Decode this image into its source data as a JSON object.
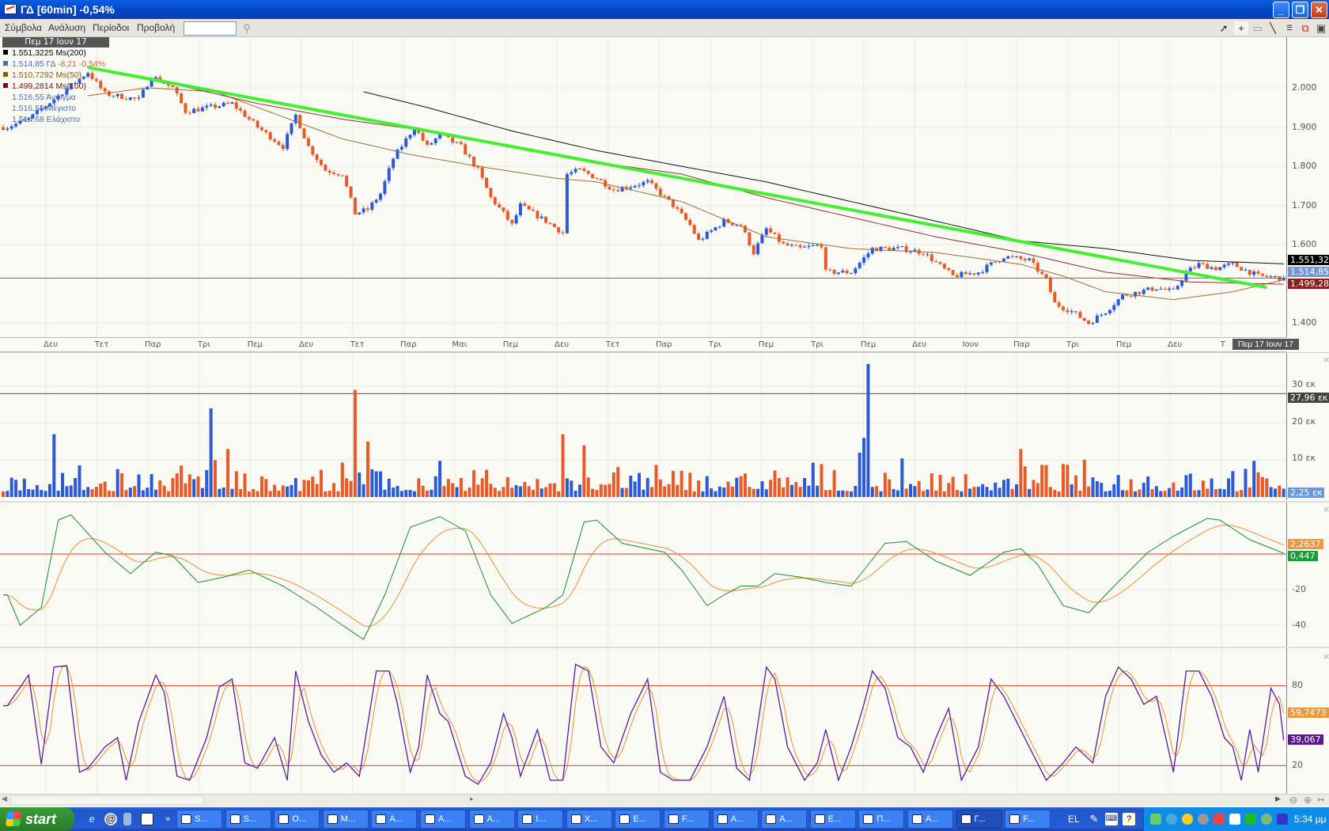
{
  "window": {
    "title": "ΓΔ [60min] -0,54%"
  },
  "menu": {
    "items": [
      "Σύμβολα",
      "Ανάλυση",
      "Περίοδοι",
      "Προβολή"
    ],
    "symbol_input": ""
  },
  "toolbar_icons": [
    "pointer-icon",
    "crosshair-icon",
    "rectangle-icon",
    "line-tool-icon",
    "horizontal-lines-icon",
    "chart-icon",
    "save-icon"
  ],
  "main": {
    "date_label": "Πεμ 17 Ιουν 17",
    "legend": [
      {
        "text": "1.551,3225 Ms(200)",
        "color": "#000000",
        "square": true
      },
      {
        "text": "1.514,85 ΓΔ ",
        "extra": "-8,21 -0,54%",
        "color": "#4a6fa8",
        "square": true
      },
      {
        "text": "1.510,7292 Ms(50)",
        "color": "#8a5a00",
        "square": true
      },
      {
        "text": "1.499,2814 Ms(100)",
        "color": "#7a1010",
        "square": true
      },
      {
        "text": "1.516,55 Άνοιγμα",
        "color": "#4a6fa8",
        "square": false
      },
      {
        "text": "1.516,55 Μέγιστο",
        "color": "#4a6fa8",
        "square": false
      },
      {
        "text": "1.514,68 Ελάχιστο",
        "color": "#4a6fa8",
        "square": false
      }
    ],
    "y_ticks": [
      {
        "v": 2000,
        "label": "2.000"
      },
      {
        "v": 1900,
        "label": "1.900"
      },
      {
        "v": 1800,
        "label": "1.800"
      },
      {
        "v": 1700,
        "label": "1.700"
      },
      {
        "v": 1600,
        "label": "1.600"
      },
      {
        "v": 1400,
        "label": "1.400"
      }
    ],
    "tags": {
      "ma200": "1.551,322",
      "price": "1.514,85",
      "ma100": "1.499,281"
    },
    "x_labels": [
      "Δευ",
      "Τετ",
      "Παρ",
      "Τρι",
      "Πεμ",
      "Δευ",
      "Τετ",
      "Παρ",
      "Μαι",
      "Πεμ",
      "Δευ",
      "Τετ",
      "Παρ",
      "Τρι",
      "Πεμ",
      "Τρι",
      "Πεμ",
      "Δευ",
      "Ιουν",
      "Παρ",
      "Τρι",
      "Πεμ",
      "Δευ",
      "Τ"
    ],
    "cursor_date": "Πεμ 17 Ιουν 17"
  },
  "chart_data": [
    {
      "type": "candlestick",
      "bars": 303,
      "ylim": [
        1370,
        2100
      ],
      "close_path": [
        [
          1,
          1900
        ],
        [
          6,
          1920
        ],
        [
          20,
          2040
        ],
        [
          24,
          1985
        ],
        [
          32,
          1970
        ],
        [
          35,
          2030
        ],
        [
          40,
          2000
        ],
        [
          43,
          1940
        ],
        [
          54,
          1960
        ],
        [
          60,
          1900
        ],
        [
          66,
          1850
        ],
        [
          69,
          1930
        ],
        [
          72,
          1850
        ],
        [
          76,
          1790
        ],
        [
          80,
          1780
        ],
        [
          83,
          1680
        ],
        [
          86,
          1690
        ],
        [
          89,
          1730
        ],
        [
          92,
          1820
        ],
        [
          97,
          1900
        ],
        [
          100,
          1850
        ],
        [
          103,
          1880
        ],
        [
          108,
          1850
        ],
        [
          112,
          1790
        ],
        [
          115,
          1720
        ],
        [
          118,
          1680
        ],
        [
          120,
          1650
        ],
        [
          122,
          1700
        ],
        [
          128,
          1660
        ],
        [
          132,
          1630
        ],
        [
          133,
          1780
        ],
        [
          136,
          1790
        ],
        [
          140,
          1770
        ],
        [
          144,
          1740
        ],
        [
          152,
          1760
        ],
        [
          158,
          1700
        ],
        [
          162,
          1650
        ],
        [
          164,
          1610
        ],
        [
          170,
          1660
        ],
        [
          174,
          1650
        ],
        [
          177,
          1580
        ],
        [
          180,
          1640
        ],
        [
          184,
          1600
        ],
        [
          188,
          1590
        ],
        [
          193,
          1600
        ],
        [
          194,
          1530
        ],
        [
          200,
          1530
        ],
        [
          205,
          1590
        ],
        [
          212,
          1590
        ],
        [
          217,
          1580
        ],
        [
          224,
          1520
        ],
        [
          230,
          1530
        ],
        [
          236,
          1570
        ],
        [
          242,
          1560
        ],
        [
          246,
          1510
        ],
        [
          248,
          1450
        ],
        [
          252,
          1430
        ],
        [
          256,
          1400
        ],
        [
          260,
          1430
        ],
        [
          264,
          1470
        ],
        [
          268,
          1480
        ],
        [
          272,
          1490
        ],
        [
          276,
          1480
        ],
        [
          279,
          1530
        ],
        [
          282,
          1550
        ],
        [
          286,
          1540
        ],
        [
          290,
          1550
        ],
        [
          296,
          1520
        ],
        [
          302,
          1514.85
        ]
      ],
      "ma200": [
        [
          85,
          1990
        ],
        [
          100,
          1950
        ],
        [
          120,
          1890
        ],
        [
          140,
          1840
        ],
        [
          160,
          1800
        ],
        [
          180,
          1760
        ],
        [
          200,
          1710
        ],
        [
          220,
          1660
        ],
        [
          240,
          1610
        ],
        [
          260,
          1590
        ],
        [
          280,
          1560
        ],
        [
          302,
          1551.32
        ]
      ],
      "ma100": [
        [
          20,
          2050
        ],
        [
          40,
          2010
        ],
        [
          60,
          1960
        ],
        [
          80,
          1920
        ],
        [
          100,
          1890
        ],
        [
          120,
          1850
        ],
        [
          140,
          1810
        ],
        [
          160,
          1780
        ],
        [
          180,
          1720
        ],
        [
          200,
          1670
        ],
        [
          220,
          1620
        ],
        [
          240,
          1580
        ],
        [
          260,
          1530
        ],
        [
          280,
          1505
        ],
        [
          302,
          1499.28
        ]
      ],
      "ma50": [
        [
          20,
          1980
        ],
        [
          34,
          2000
        ],
        [
          50,
          1990
        ],
        [
          60,
          1950
        ],
        [
          80,
          1870
        ],
        [
          96,
          1830
        ],
        [
          112,
          1800
        ],
        [
          130,
          1770
        ],
        [
          140,
          1760
        ],
        [
          160,
          1710
        ],
        [
          180,
          1620
        ],
        [
          200,
          1590
        ],
        [
          220,
          1580
        ],
        [
          240,
          1550
        ],
        [
          250,
          1520
        ],
        [
          260,
          1480
        ],
        [
          276,
          1460
        ],
        [
          290,
          1480
        ],
        [
          302,
          1510.73
        ]
      ],
      "trendline": [
        [
          20,
          2052
        ],
        [
          298,
          1491
        ]
      ],
      "hline": 1514.85,
      "colors": {
        "up": "#2a5ad6",
        "down": "#e85a28",
        "ma200": "#111111",
        "ma100": "#8a3030",
        "ma50": "#9a7030",
        "trendline": "#44ee33",
        "hline": "#d84020"
      }
    },
    {
      "type": "bar",
      "name": "volume",
      "y_ticks": [
        {
          "v": 30,
          "label": "30 εκ"
        },
        {
          "v": 20,
          "label": "20 εκ"
        },
        {
          "v": 10,
          "label": "10 εκ"
        }
      ],
      "hline": 27.96,
      "hline_label": "27,96 εκ",
      "last_label": "2,25 εκ",
      "spikes": [
        [
          12,
          17
        ],
        [
          49,
          24
        ],
        [
          50,
          10
        ],
        [
          53,
          13
        ],
        [
          83,
          29
        ],
        [
          86,
          15
        ],
        [
          132,
          17
        ],
        [
          137,
          14
        ],
        [
          202,
          12
        ],
        [
          203,
          16
        ],
        [
          204,
          36
        ],
        [
          240,
          13
        ]
      ],
      "last": 2.25
    },
    {
      "type": "line",
      "name": "macd",
      "y_ticks": [
        {
          "v": -20,
          "label": "-20"
        },
        {
          "v": -40,
          "label": "-40"
        }
      ],
      "hline": 0,
      "macd": [
        [
          1,
          -23
        ],
        [
          4,
          -40
        ],
        [
          9,
          -30
        ],
        [
          13,
          19
        ],
        [
          16,
          22
        ],
        [
          24,
          1
        ],
        [
          30,
          -11
        ],
        [
          36,
          1
        ],
        [
          40,
          -1
        ],
        [
          46,
          -16
        ],
        [
          52,
          -13
        ],
        [
          58,
          -9
        ],
        [
          66,
          -18
        ],
        [
          74,
          -30
        ],
        [
          80,
          -40
        ],
        [
          85,
          -48
        ],
        [
          90,
          -23
        ],
        [
          96,
          15
        ],
        [
          103,
          21
        ],
        [
          109,
          13
        ],
        [
          115,
          -23
        ],
        [
          120,
          -39
        ],
        [
          128,
          -30
        ],
        [
          132,
          -23
        ],
        [
          137,
          18
        ],
        [
          140,
          19
        ],
        [
          146,
          6
        ],
        [
          156,
          1
        ],
        [
          160,
          -9
        ],
        [
          166,
          -29
        ],
        [
          170,
          -23
        ],
        [
          174,
          -18
        ],
        [
          178,
          -18
        ],
        [
          182,
          -11
        ],
        [
          188,
          -13
        ],
        [
          194,
          -16
        ],
        [
          200,
          -18
        ],
        [
          204,
          -6
        ],
        [
          208,
          6
        ],
        [
          213,
          7
        ],
        [
          220,
          -4
        ],
        [
          228,
          -12
        ],
        [
          236,
          1
        ],
        [
          240,
          3
        ],
        [
          244,
          -6
        ],
        [
          250,
          -29
        ],
        [
          256,
          -33
        ],
        [
          262,
          -18
        ],
        [
          270,
          1
        ],
        [
          276,
          10
        ],
        [
          284,
          20
        ],
        [
          287,
          19
        ],
        [
          294,
          8
        ],
        [
          302,
          0.447
        ]
      ],
      "labels": {
        "signal": "2,2637",
        "macd": "0,447"
      },
      "colors": {
        "macd": "#1a8a3a",
        "signal": "#e89030",
        "hline": "#d84020"
      }
    },
    {
      "type": "line",
      "name": "stochastic",
      "y_ticks": [
        {
          "v": 80,
          "label": "80"
        },
        {
          "v": 20,
          "label": "20"
        }
      ],
      "hlines": [
        80,
        20
      ],
      "k": [
        [
          1,
          65
        ],
        [
          6,
          88
        ],
        [
          9,
          21
        ],
        [
          12,
          94
        ],
        [
          15,
          95
        ],
        [
          18,
          15
        ],
        [
          20,
          18
        ],
        [
          24,
          34
        ],
        [
          27,
          41
        ],
        [
          29,
          9
        ],
        [
          32,
          53
        ],
        [
          36,
          88
        ],
        [
          38,
          75
        ],
        [
          41,
          12
        ],
        [
          44,
          9
        ],
        [
          48,
          41
        ],
        [
          51,
          79
        ],
        [
          54,
          85
        ],
        [
          57,
          22
        ],
        [
          60,
          18
        ],
        [
          64,
          41
        ],
        [
          67,
          9
        ],
        [
          69,
          91
        ],
        [
          72,
          53
        ],
        [
          75,
          28
        ],
        [
          78,
          15
        ],
        [
          81,
          22
        ],
        [
          84,
          12
        ],
        [
          88,
          91
        ],
        [
          91,
          91
        ],
        [
          93,
          66
        ],
        [
          96,
          15
        ],
        [
          98,
          34
        ],
        [
          100,
          88
        ],
        [
          103,
          59
        ],
        [
          105,
          53
        ],
        [
          109,
          12
        ],
        [
          112,
          6
        ],
        [
          115,
          22
        ],
        [
          118,
          59
        ],
        [
          120,
          41
        ],
        [
          122,
          12
        ],
        [
          126,
          47
        ],
        [
          129,
          9
        ],
        [
          132,
          9
        ],
        [
          135,
          96
        ],
        [
          138,
          91
        ],
        [
          141,
          34
        ],
        [
          144,
          22
        ],
        [
          148,
          59
        ],
        [
          152,
          85
        ],
        [
          155,
          15
        ],
        [
          158,
          9
        ],
        [
          162,
          9
        ],
        [
          166,
          34
        ],
        [
          170,
          72
        ],
        [
          173,
          18
        ],
        [
          176,
          9
        ],
        [
          180,
          94
        ],
        [
          182,
          85
        ],
        [
          185,
          34
        ],
        [
          189,
          9
        ],
        [
          192,
          22
        ],
        [
          194,
          47
        ],
        [
          197,
          9
        ],
        [
          200,
          34
        ],
        [
          203,
          66
        ],
        [
          205,
          91
        ],
        [
          208,
          78
        ],
        [
          211,
          41
        ],
        [
          214,
          34
        ],
        [
          217,
          15
        ],
        [
          220,
          41
        ],
        [
          223,
          63
        ],
        [
          226,
          9
        ],
        [
          230,
          34
        ],
        [
          233,
          85
        ],
        [
          236,
          72
        ],
        [
          239,
          53
        ],
        [
          242,
          34
        ],
        [
          246,
          9
        ],
        [
          250,
          22
        ],
        [
          253,
          34
        ],
        [
          257,
          22
        ],
        [
          260,
          72
        ],
        [
          263,
          94
        ],
        [
          266,
          85
        ],
        [
          269,
          66
        ],
        [
          272,
          72
        ],
        [
          276,
          15
        ],
        [
          279,
          91
        ],
        [
          282,
          91
        ],
        [
          285,
          72
        ],
        [
          288,
          41
        ],
        [
          290,
          34
        ],
        [
          292,
          9
        ],
        [
          294,
          47
        ],
        [
          296,
          15
        ],
        [
          299,
          78
        ],
        [
          301,
          66
        ],
        [
          302,
          39.067
        ]
      ],
      "labels": {
        "d": "59,7473",
        "k": "39,067"
      },
      "colors": {
        "k": "#5a1a9a",
        "d": "#e89030",
        "hline": "#d84020"
      }
    }
  ],
  "taskbar": {
    "start": "start",
    "tasks": [
      "S...",
      "S...",
      "O...",
      "M...",
      "A...",
      "A...",
      "A...",
      "I...",
      "X...",
      "E...",
      "F...",
      "A...",
      "A...",
      "E...",
      "Π...",
      "A...",
      "Γ...",
      "F..."
    ],
    "active_task": 16,
    "language": "EL",
    "clock": "5:34 μμ"
  }
}
